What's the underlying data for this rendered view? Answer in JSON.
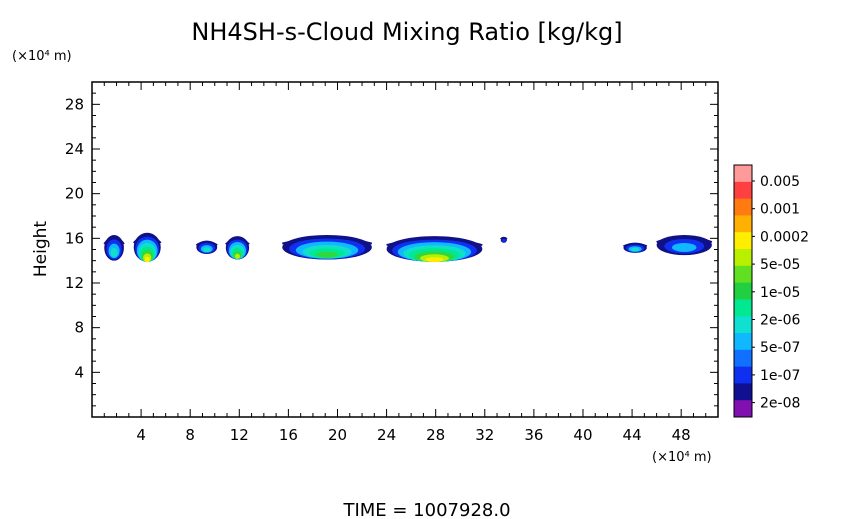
{
  "chart_data": {
    "type": "heatmap",
    "title": "NH4SH-s-Cloud Mixing Ratio [kg/kg]",
    "xlabel": "",
    "ylabel": "Height",
    "x_unit_label": "(×10⁴ m)",
    "y_unit_label": "(×10⁴ m)",
    "footer": "TIME = 1007928.0",
    "xlim": [
      0,
      51
    ],
    "ylim": [
      0,
      30
    ],
    "x_ticks": [
      4,
      8,
      12,
      16,
      20,
      24,
      28,
      32,
      36,
      40,
      44,
      48
    ],
    "y_ticks": [
      4,
      8,
      12,
      16,
      20,
      24,
      28
    ],
    "x_tick_labels": [
      "4",
      "8",
      "12",
      "16",
      "20",
      "24",
      "28",
      "32",
      "36",
      "40",
      "44",
      "48"
    ],
    "y_tick_labels": [
      "4",
      "8",
      "12",
      "16",
      "20",
      "24",
      "28"
    ],
    "colorbar": {
      "labels": [
        "0.005",
        "0.001",
        "0.0002",
        "5e-05",
        "1e-05",
        "2e-06",
        "5e-07",
        "1e-07",
        "2e-08"
      ],
      "colors": [
        "#ff9a9a",
        "#ff4040",
        "#ff7a10",
        "#ffb000",
        "#ffee00",
        "#b8f000",
        "#60e020",
        "#20d040",
        "#00e890",
        "#10e0d0",
        "#10b8ff",
        "#1070ff",
        "#1030f0",
        "#101090",
        "#8010b0"
      ]
    },
    "cloud_regions": [
      {
        "x": [
          1,
          2.6
        ],
        "y": [
          14,
          16.3
        ],
        "max_value": "5e-07"
      },
      {
        "x": [
          3.4,
          5.6
        ],
        "y": [
          13.9,
          16.5
        ],
        "max_value": "0.0002"
      },
      {
        "x": [
          8.5,
          10.2
        ],
        "y": [
          14.6,
          15.8
        ],
        "max_value": "5e-07"
      },
      {
        "x": [
          10.9,
          12.8
        ],
        "y": [
          14.1,
          16.2
        ],
        "max_value": "5e-05"
      },
      {
        "x": [
          15.5,
          22.8
        ],
        "y": [
          14.1,
          16.3
        ],
        "max_value": "1e-05"
      },
      {
        "x": [
          24,
          31.8
        ],
        "y": [
          13.9,
          16.2
        ],
        "max_value": "0.0002"
      },
      {
        "x": [
          33.3,
          33.8
        ],
        "y": [
          15.6,
          16.1
        ],
        "max_value": "1e-07"
      },
      {
        "x": [
          43.3,
          45.2
        ],
        "y": [
          14.7,
          15.6
        ],
        "max_value": "5e-07"
      },
      {
        "x": [
          46,
          50.5
        ],
        "y": [
          14.5,
          16.3
        ],
        "max_value": "1e-06"
      }
    ]
  }
}
